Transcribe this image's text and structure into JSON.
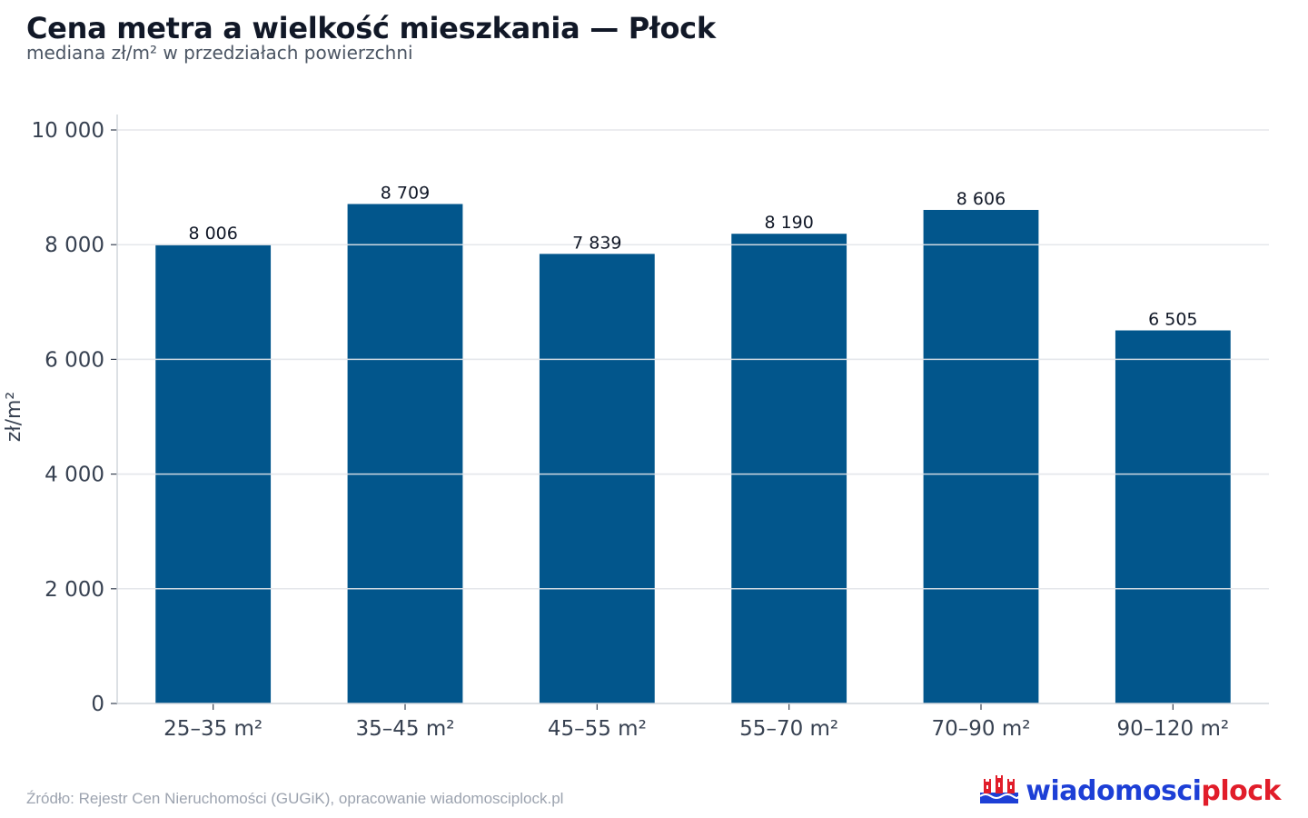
{
  "title": "Cena metra a wielkość mieszkania — Płock",
  "subtitle": "mediana zł/m² w przedziałach powierzchni",
  "source": "Źródło: Rejestr Cen Nieruchomości (GUGiK), opracowanie wiadomosciplock.pl",
  "logo": {
    "part1": "wiadomosci",
    "part2": "plock",
    "icon": "plock-crest-icon"
  },
  "colors": {
    "bar": "#02568c",
    "grid": "#e5e7eb",
    "axis": "#d1d5db",
    "text": "#374151"
  },
  "chart_data": {
    "type": "bar",
    "title": "Cena metra a wielkość mieszkania — Płock",
    "subtitle": "mediana zł/m² w przedziałach powierzchni",
    "xlabel": "",
    "ylabel": "zł/m²",
    "categories": [
      "25–35 m²",
      "35–45 m²",
      "45–55 m²",
      "55–70 m²",
      "70–90 m²",
      "90–120 m²"
    ],
    "values": [
      8006,
      8709,
      7839,
      8190,
      8606,
      6505
    ],
    "value_labels": [
      "8 006",
      "8 709",
      "7 839",
      "8 190",
      "8 606",
      "6 505"
    ],
    "ylim": [
      0,
      10000
    ],
    "yticks": [
      0,
      2000,
      4000,
      6000,
      8000,
      10000
    ],
    "ytick_labels": [
      "0",
      "2 000",
      "4 000",
      "6 000",
      "8 000",
      "10 000"
    ],
    "grid": true,
    "legend": "none"
  }
}
